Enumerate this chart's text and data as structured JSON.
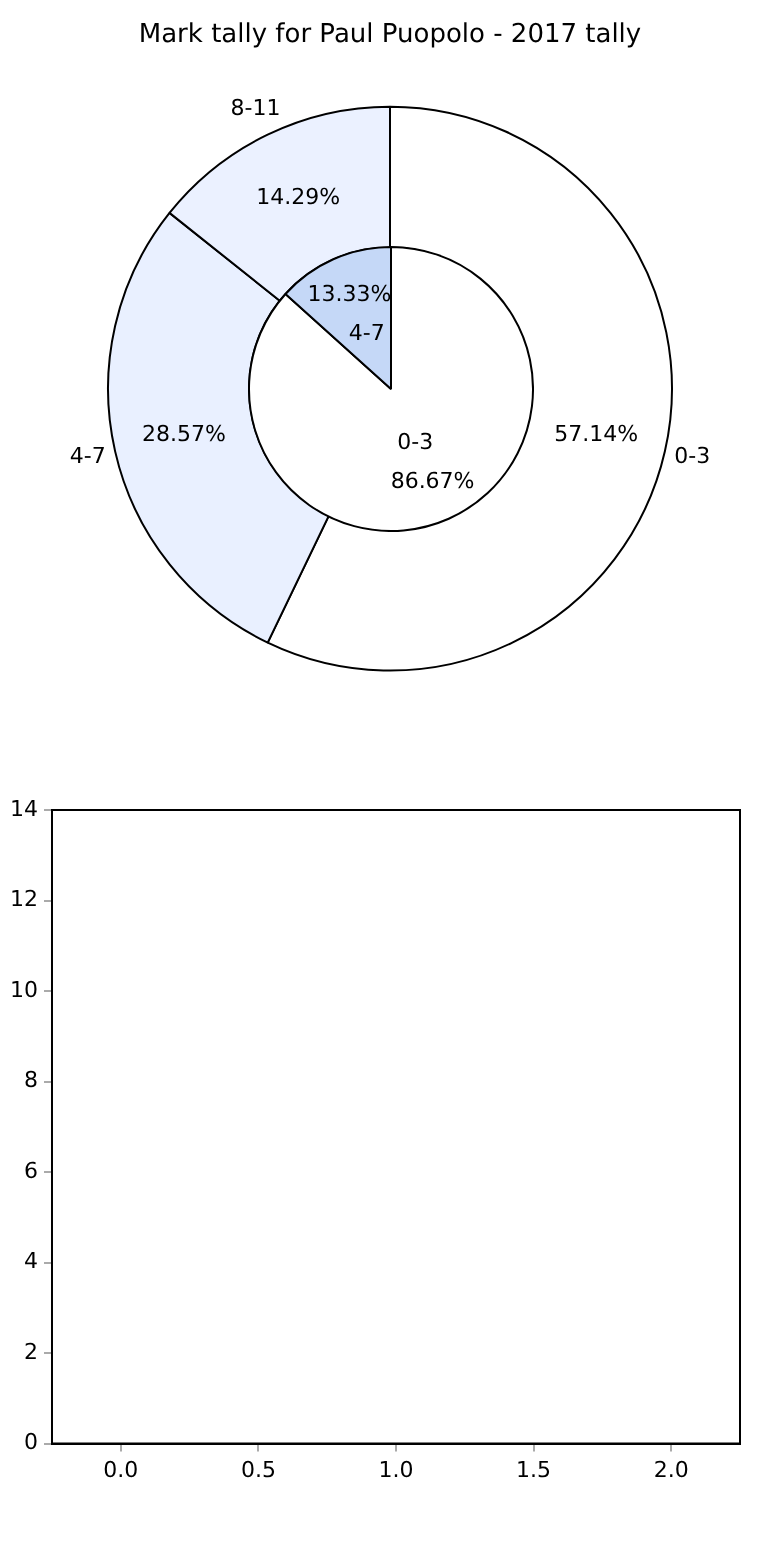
{
  "chart_data": [
    {
      "type": "donut",
      "title": "Mark tally for Paul Puopolo - 2017 tally",
      "categories": [
        "0-3",
        "4-7",
        "8-11"
      ],
      "colors": [
        "#ffffff",
        "#e9f0ff",
        "#ebf1ff"
      ],
      "values": [
        57.14,
        28.57,
        14.29
      ],
      "value_labels": [
        "57.14%",
        "28.57%",
        "14.29%"
      ],
      "legend": false
    },
    {
      "type": "pie",
      "categories": [
        "0-3",
        "4-7"
      ],
      "colors": [
        "#ffffff",
        "#c5d8f7"
      ],
      "values": [
        86.67,
        13.33
      ],
      "value_labels": [
        "86.67%",
        "13.33%"
      ],
      "legend": false
    },
    {
      "type": "scatter",
      "xlim": [
        -0.25,
        2.25
      ],
      "xticks": [
        {
          "value": 0,
          "label": "0.0"
        },
        {
          "value": 0.5,
          "label": "0.5"
        },
        {
          "value": 1,
          "label": "1.0"
        },
        {
          "value": 1.5,
          "label": "1.5"
        },
        {
          "value": 2,
          "label": "2.0"
        }
      ],
      "ylim": [
        0,
        14
      ],
      "yticks": [
        0,
        2,
        4,
        6,
        8,
        10,
        12,
        14
      ],
      "grid": false,
      "legend": false
    }
  ]
}
